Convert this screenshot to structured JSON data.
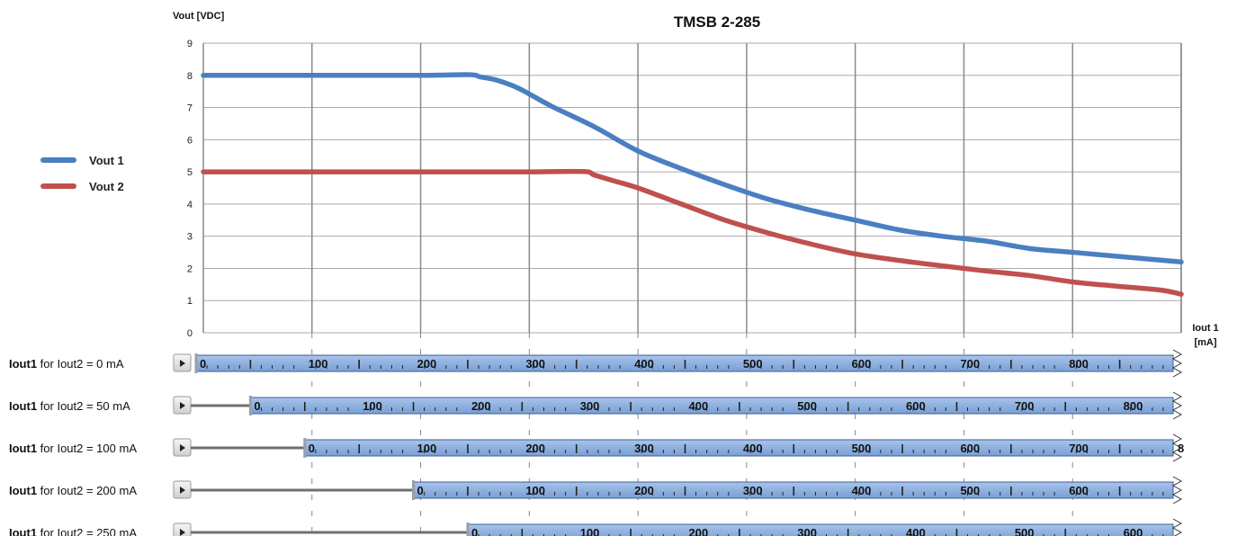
{
  "chart_data": {
    "type": "line",
    "title": "TMSB 2-285",
    "ylabel": "Vout [VDC]",
    "xlabel_line1": "Iout 1",
    "xlabel_line2": "[mA]",
    "xlim": [
      0,
      900
    ],
    "ylim": [
      0,
      9
    ],
    "y_ticks": [
      "0",
      "1",
      "2",
      "3",
      "4",
      "5",
      "6",
      "7",
      "8",
      "9"
    ],
    "grid": true,
    "legend_position": "left",
    "series": [
      {
        "name": "Vout 1",
        "color": "#4a7fc1",
        "x": [
          0,
          100,
          200,
          245,
          255,
          270,
          290,
          320,
          360,
          400,
          440,
          480,
          520,
          560,
          600,
          640,
          680,
          720,
          760,
          800,
          840,
          880,
          900
        ],
        "y": [
          8.0,
          8.0,
          8.0,
          8.02,
          7.95,
          7.85,
          7.6,
          7.05,
          6.4,
          5.65,
          5.1,
          4.6,
          4.15,
          3.8,
          3.5,
          3.2,
          3.0,
          2.85,
          2.62,
          2.5,
          2.38,
          2.26,
          2.2
        ]
      },
      {
        "name": "Vout 2",
        "color": "#c0504d",
        "x": [
          0,
          100,
          200,
          300,
          350,
          360,
          380,
          400,
          440,
          480,
          520,
          560,
          600,
          640,
          680,
          720,
          760,
          800,
          840,
          880,
          900
        ],
        "y": [
          5.0,
          5.0,
          5.0,
          5.0,
          5.01,
          4.9,
          4.7,
          4.5,
          4.0,
          3.5,
          3.1,
          2.75,
          2.45,
          2.25,
          2.08,
          1.92,
          1.78,
          1.58,
          1.45,
          1.33,
          1.2
        ]
      }
    ],
    "scales": [
      {
        "label_bold": "Iout1",
        "label_rest": " for Iout2 = 0 mA",
        "offset": 0,
        "numbers": [
          "0",
          "100",
          "200",
          "300",
          "400",
          "500",
          "600",
          "700",
          "800"
        ]
      },
      {
        "label_bold": "Iout1",
        "label_rest": " for Iout2 = 50 mA",
        "offset": 50,
        "numbers": [
          "0",
          "100",
          "200",
          "300",
          "400",
          "500",
          "600",
          "700",
          "800"
        ]
      },
      {
        "label_bold": "Iout1",
        "label_rest": " for Iout2 = 100 mA",
        "offset": 100,
        "numbers": [
          "0",
          "100",
          "200",
          "300",
          "400",
          "500",
          "600",
          "700",
          "8"
        ]
      },
      {
        "label_bold": "Iout1",
        "label_rest": " for Iout2 = 200 mA",
        "offset": 200,
        "numbers": [
          "0",
          "100",
          "200",
          "300",
          "400",
          "500",
          "600"
        ]
      },
      {
        "label_bold": "Iout1",
        "label_rest": " for Iout2 = 250 mA",
        "offset": 250,
        "numbers": [
          "0",
          "100",
          "200",
          "300",
          "400",
          "500",
          "600"
        ]
      }
    ]
  }
}
